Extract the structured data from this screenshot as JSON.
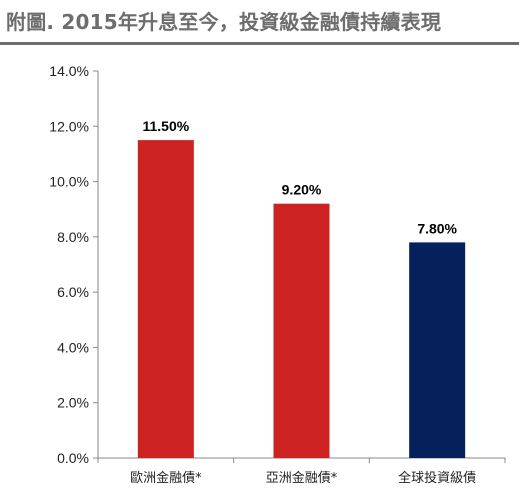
{
  "chart_data": {
    "type": "bar",
    "title": "附圖. 2015年升息至今，投資級金融債持續表現",
    "categories": [
      "歐洲金融債*",
      "亞洲金融債*",
      "全球投資級債"
    ],
    "values": [
      11.5,
      9.2,
      7.8
    ],
    "data_labels": [
      "11.50%",
      "9.20%",
      "7.80%"
    ],
    "colors": [
      "#cc2222",
      "#cc2222",
      "#06205e"
    ],
    "y_ticks": [
      "0.0%",
      "2.0%",
      "4.0%",
      "6.0%",
      "8.0%",
      "10.0%",
      "12.0%",
      "14.0%"
    ],
    "y_tick_values": [
      0,
      2,
      4,
      6,
      8,
      10,
      12,
      14
    ],
    "ylim": [
      0,
      14
    ],
    "xlabel": "",
    "ylabel": "",
    "grid": false,
    "legend": "none"
  }
}
